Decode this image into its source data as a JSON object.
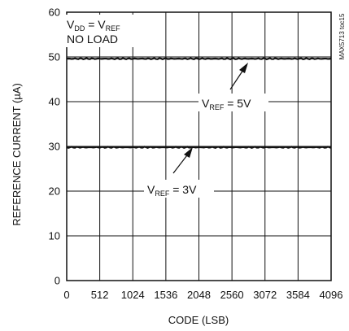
{
  "chart_data": {
    "type": "line",
    "chart_id": "MAX5713 toc15",
    "xlabel": "CODE (LSB)",
    "ylabel": "REFERENCE CURRENT (µA)",
    "xlim": [
      0,
      4096
    ],
    "ylim": [
      0,
      60
    ],
    "x_ticks": [
      "0",
      "512",
      "1024",
      "1536",
      "2048",
      "2560",
      "3072",
      "3584",
      "4096"
    ],
    "y_ticks": [
      "0",
      "10",
      "20",
      "30",
      "40",
      "50",
      "60"
    ],
    "grid": true,
    "condition_line1": {
      "main": "V",
      "sub1": "DD",
      "mid": " = V",
      "sub2": "REF"
    },
    "condition_line2": "NO LOAD",
    "series": [
      {
        "label": {
          "main": "V",
          "sub": "REF",
          "rest": " = 5V"
        },
        "x": [
          0,
          4096
        ],
        "values": [
          49.6,
          49.6
        ],
        "color": "#111111"
      },
      {
        "label": {
          "main": "V",
          "sub": "REF",
          "rest": " = 3V"
        },
        "x": [
          0,
          4096
        ],
        "values": [
          29.8,
          29.8
        ],
        "color": "#111111"
      }
    ]
  }
}
